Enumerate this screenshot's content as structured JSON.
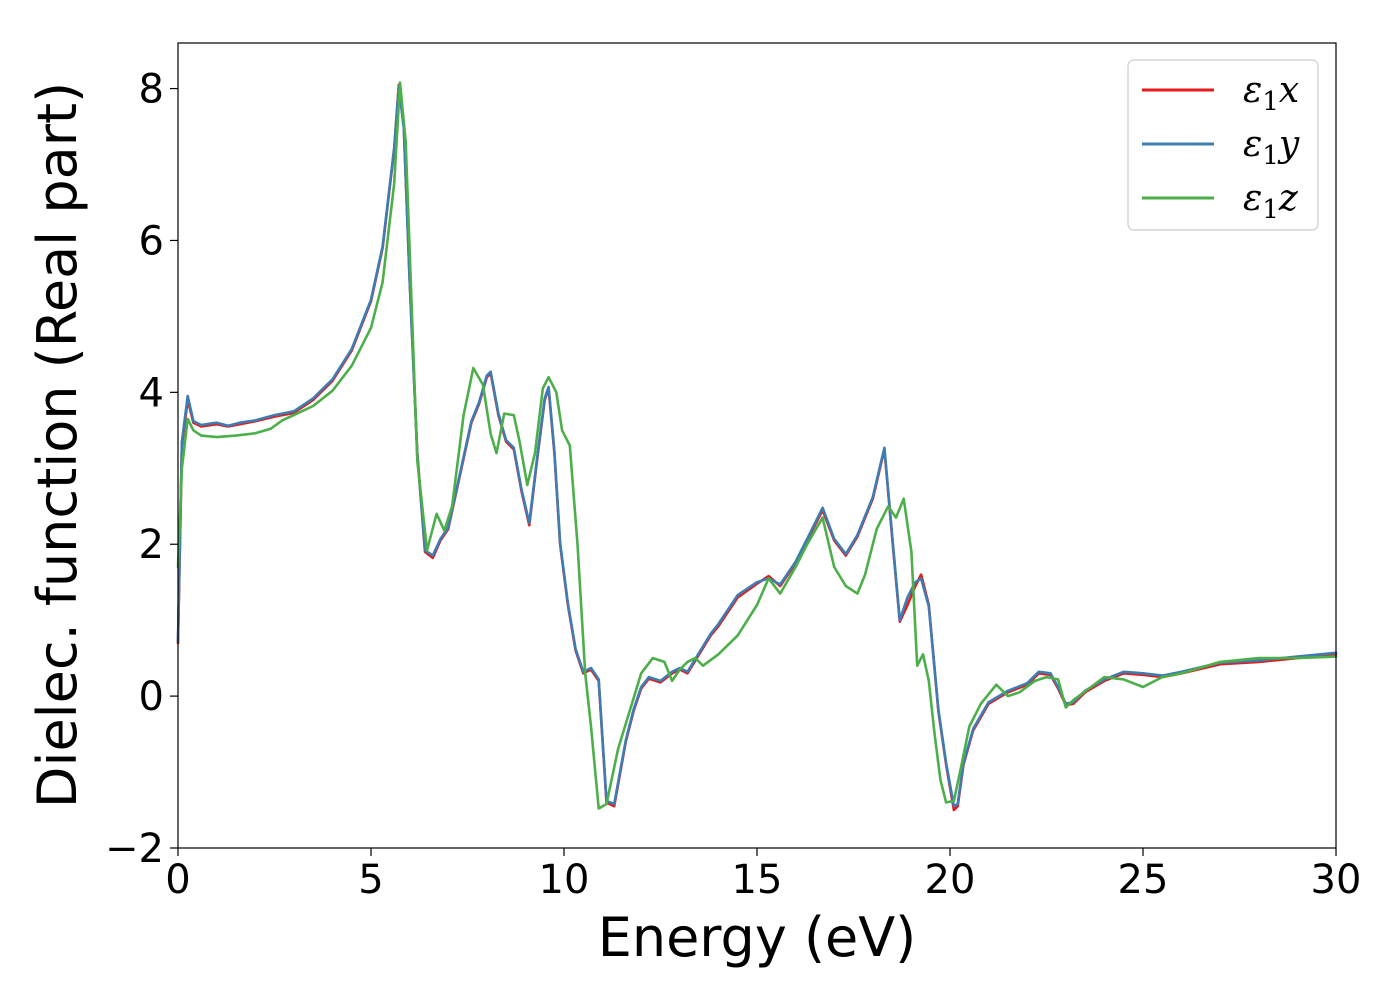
{
  "chart_data": {
    "type": "line",
    "xlabel": "Energy (eV)",
    "ylabel": "Dielec. function (Real part)",
    "xlim": [
      0,
      30
    ],
    "ylim": [
      -2,
      8.6
    ],
    "xticks": [
      0,
      5,
      10,
      15,
      20,
      25,
      30
    ],
    "yticks": [
      -2,
      0,
      2,
      4,
      6,
      8
    ],
    "xtick_labels": [
      "0",
      "5",
      "10",
      "15",
      "20",
      "25",
      "30"
    ],
    "ytick_labels": [
      "−2",
      "0",
      "2",
      "4",
      "6",
      "8"
    ],
    "grid": false,
    "legend_position": "top-right",
    "series": [
      {
        "name": "ε₁x",
        "legend_symbol": "ε",
        "legend_sub": "1",
        "legend_var": "x",
        "color": "#e41a1c",
        "x": [
          0,
          0.1,
          0.25,
          0.4,
          0.6,
          1.0,
          1.3,
          1.6,
          2.0,
          2.5,
          2.7,
          3.0,
          3.5,
          4.0,
          4.5,
          5.0,
          5.3,
          5.6,
          5.72,
          5.85,
          6.0,
          6.2,
          6.4,
          6.6,
          6.8,
          7.0,
          7.3,
          7.6,
          7.8,
          8.0,
          8.1,
          8.3,
          8.5,
          8.7,
          8.9,
          9.1,
          9.3,
          9.5,
          9.6,
          9.75,
          9.9,
          10.1,
          10.3,
          10.5,
          10.7,
          10.9,
          11.1,
          11.3,
          11.6,
          11.8,
          12.0,
          12.2,
          12.5,
          12.8,
          13.0,
          13.2,
          13.5,
          13.8,
          14.0,
          14.5,
          15.0,
          15.3,
          15.6,
          16.0,
          16.3,
          16.7,
          17.0,
          17.3,
          17.6,
          18.0,
          18.3,
          18.5,
          18.7,
          18.9,
          19.1,
          19.25,
          19.45,
          19.7,
          19.9,
          20.1,
          20.2,
          20.35,
          20.6,
          21.0,
          21.5,
          22.0,
          22.3,
          22.6,
          22.8,
          23.0,
          23.2,
          23.5,
          24.0,
          24.5,
          25.0,
          25.5,
          26.0,
          27.0,
          28.0,
          29.0,
          30.0
        ],
        "values": [
          0.7,
          3.3,
          3.9,
          3.6,
          3.55,
          3.58,
          3.55,
          3.58,
          3.62,
          3.68,
          3.7,
          3.73,
          3.9,
          4.15,
          4.55,
          5.2,
          5.9,
          7.2,
          8.05,
          7.5,
          5.5,
          3.2,
          1.9,
          1.82,
          2.05,
          2.2,
          2.9,
          3.6,
          3.85,
          4.2,
          4.25,
          3.7,
          3.35,
          3.25,
          2.7,
          2.25,
          3.1,
          3.9,
          4.05,
          3.2,
          2.0,
          1.2,
          0.6,
          0.3,
          0.35,
          0.2,
          -1.4,
          -1.45,
          -0.6,
          -0.2,
          0.1,
          0.23,
          0.18,
          0.3,
          0.35,
          0.3,
          0.55,
          0.8,
          0.92,
          1.3,
          1.48,
          1.58,
          1.45,
          1.75,
          2.05,
          2.45,
          2.05,
          1.85,
          2.1,
          2.6,
          3.25,
          2.1,
          0.98,
          1.2,
          1.45,
          1.6,
          1.2,
          -0.2,
          -0.9,
          -1.5,
          -1.45,
          -0.9,
          -0.45,
          -0.1,
          0.05,
          0.15,
          0.3,
          0.28,
          0.1,
          -0.12,
          -0.1,
          0.05,
          0.2,
          0.3,
          0.28,
          0.25,
          0.3,
          0.42,
          0.45,
          0.5,
          0.55
        ]
      },
      {
        "name": "ε₁y",
        "legend_symbol": "ε",
        "legend_sub": "1",
        "legend_var": "y",
        "color": "#3e7cb1",
        "x": [
          0,
          0.1,
          0.25,
          0.4,
          0.6,
          1.0,
          1.3,
          1.6,
          2.0,
          2.5,
          2.7,
          3.0,
          3.5,
          4.0,
          4.5,
          5.0,
          5.3,
          5.6,
          5.72,
          5.85,
          6.0,
          6.2,
          6.4,
          6.6,
          6.8,
          7.0,
          7.3,
          7.6,
          7.8,
          8.0,
          8.1,
          8.3,
          8.5,
          8.7,
          8.9,
          9.1,
          9.3,
          9.5,
          9.6,
          9.75,
          9.9,
          10.1,
          10.3,
          10.5,
          10.7,
          10.9,
          11.1,
          11.3,
          11.6,
          11.8,
          12.0,
          12.2,
          12.5,
          12.8,
          13.0,
          13.2,
          13.5,
          13.8,
          14.0,
          14.5,
          15.0,
          15.3,
          15.6,
          16.0,
          16.3,
          16.7,
          17.0,
          17.3,
          17.6,
          18.0,
          18.3,
          18.5,
          18.7,
          18.9,
          19.1,
          19.25,
          19.45,
          19.7,
          19.9,
          20.1,
          20.2,
          20.35,
          20.6,
          21.0,
          21.5,
          22.0,
          22.3,
          22.6,
          22.8,
          23.0,
          23.2,
          23.5,
          24.0,
          24.5,
          25.0,
          25.5,
          26.0,
          27.0,
          28.0,
          29.0,
          30.0
        ],
        "values": [
          0.72,
          3.35,
          3.95,
          3.62,
          3.57,
          3.6,
          3.56,
          3.6,
          3.63,
          3.7,
          3.72,
          3.75,
          3.92,
          4.17,
          4.57,
          5.22,
          5.92,
          7.22,
          8.03,
          7.48,
          5.48,
          3.18,
          1.92,
          1.85,
          2.07,
          2.22,
          2.92,
          3.62,
          3.87,
          4.22,
          4.27,
          3.72,
          3.37,
          3.27,
          2.72,
          2.28,
          3.12,
          3.92,
          4.07,
          3.22,
          2.02,
          1.22,
          0.62,
          0.32,
          0.37,
          0.22,
          -1.38,
          -1.42,
          -0.58,
          -0.18,
          0.12,
          0.25,
          0.2,
          0.32,
          0.37,
          0.32,
          0.57,
          0.82,
          0.95,
          1.33,
          1.5,
          1.55,
          1.47,
          1.77,
          2.07,
          2.48,
          2.07,
          1.87,
          2.12,
          2.62,
          3.27,
          2.12,
          1.0,
          1.3,
          1.5,
          1.55,
          1.18,
          -0.18,
          -0.88,
          -1.45,
          -1.42,
          -0.88,
          -0.43,
          -0.08,
          0.07,
          0.17,
          0.32,
          0.3,
          0.12,
          -0.1,
          -0.08,
          0.07,
          0.22,
          0.32,
          0.3,
          0.27,
          0.32,
          0.44,
          0.47,
          0.52,
          0.57
        ]
      },
      {
        "name": "ε₁z",
        "legend_symbol": "ε",
        "legend_sub": "1",
        "legend_var": "z",
        "color": "#4daf4a",
        "x": [
          0,
          0.1,
          0.25,
          0.4,
          0.6,
          1.0,
          1.5,
          2.0,
          2.4,
          2.7,
          3.0,
          3.5,
          4.0,
          4.5,
          5.0,
          5.3,
          5.6,
          5.75,
          5.9,
          6.05,
          6.2,
          6.45,
          6.7,
          6.9,
          7.1,
          7.4,
          7.65,
          7.9,
          8.1,
          8.25,
          8.45,
          8.7,
          8.85,
          9.05,
          9.25,
          9.45,
          9.6,
          9.8,
          9.95,
          10.15,
          10.35,
          10.55,
          10.7,
          10.9,
          11.1,
          11.4,
          11.7,
          12.0,
          12.3,
          12.6,
          12.8,
          13.0,
          13.2,
          13.4,
          13.6,
          14.0,
          14.5,
          15.0,
          15.3,
          15.6,
          16.0,
          16.3,
          16.7,
          17.0,
          17.3,
          17.6,
          17.8,
          18.1,
          18.4,
          18.6,
          18.8,
          19.0,
          19.15,
          19.3,
          19.45,
          19.6,
          19.75,
          19.9,
          20.1,
          20.3,
          20.5,
          20.8,
          21.2,
          21.5,
          21.8,
          22.2,
          22.5,
          22.8,
          23.0,
          23.2,
          23.6,
          24.0,
          24.5,
          25.0,
          25.5,
          26.0,
          27.0,
          28.0,
          29.0,
          30.0
        ],
        "values": [
          1.7,
          3.0,
          3.65,
          3.5,
          3.43,
          3.41,
          3.43,
          3.46,
          3.52,
          3.63,
          3.7,
          3.82,
          4.02,
          4.35,
          4.85,
          5.45,
          6.75,
          8.08,
          7.3,
          5.2,
          3.1,
          1.92,
          2.4,
          2.18,
          2.5,
          3.7,
          4.32,
          4.1,
          3.45,
          3.2,
          3.72,
          3.7,
          3.35,
          2.78,
          3.2,
          4.05,
          4.2,
          4.0,
          3.5,
          3.3,
          2.0,
          0.3,
          -0.4,
          -1.48,
          -1.42,
          -0.7,
          -0.2,
          0.3,
          0.5,
          0.45,
          0.2,
          0.35,
          0.45,
          0.5,
          0.4,
          0.55,
          0.8,
          1.2,
          1.55,
          1.35,
          1.7,
          2.0,
          2.35,
          1.7,
          1.45,
          1.35,
          1.6,
          2.2,
          2.5,
          2.35,
          2.6,
          1.9,
          0.4,
          0.55,
          0.2,
          -0.5,
          -1.1,
          -1.4,
          -1.38,
          -0.9,
          -0.4,
          -0.1,
          0.15,
          0.0,
          0.05,
          0.2,
          0.25,
          0.22,
          -0.15,
          -0.05,
          0.1,
          0.25,
          0.22,
          0.12,
          0.25,
          0.3,
          0.45,
          0.5,
          0.5,
          0.52
        ]
      }
    ]
  }
}
